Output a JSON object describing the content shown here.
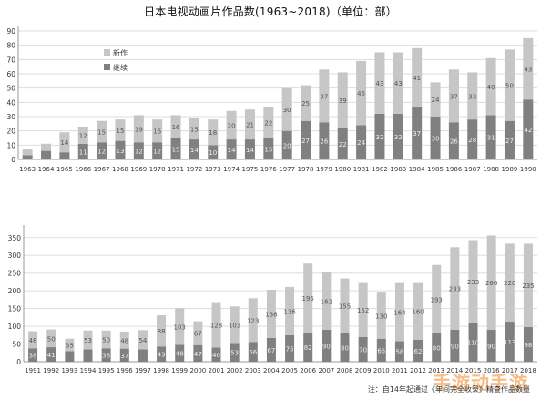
{
  "title": "日本电视动画片作品数(1963~2018)（单位：部）",
  "footnote": "注：自14年起通过《年间完全收录》精查作品数量",
  "watermark": "手游动手游",
  "colors": {
    "new": "#c6c6c6",
    "continued": "#808080",
    "axis": "#999999",
    "grid": "#dddddd",
    "text": "#333333",
    "label_dark": "#555555",
    "label_light": "#eeeeee"
  },
  "chart_data": [
    {
      "type": "bar",
      "stacked": true,
      "categories": [
        "1963",
        "1964",
        "1965",
        "1966",
        "1967",
        "1968",
        "1969",
        "1970",
        "1971",
        "1972",
        "1973",
        "1974",
        "1975",
        "1976",
        "1977",
        "1978",
        "1979",
        "1980",
        "1981",
        "1982",
        "1983",
        "1984",
        "1985",
        "1986",
        "1987",
        "1988",
        "1989",
        "1990"
      ],
      "series": [
        {
          "name": "继续",
          "color_key": "continued",
          "values": [
            3,
            6,
            5,
            11,
            12,
            13,
            12,
            12,
            15,
            14,
            10,
            14,
            14,
            15,
            20,
            27,
            26,
            22,
            24,
            32,
            32,
            37,
            30,
            26,
            28,
            31,
            27,
            42
          ]
        },
        {
          "name": "新作",
          "color_key": "new",
          "values": [
            4,
            5,
            14,
            12,
            15,
            15,
            19,
            16,
            16,
            15,
            18,
            20,
            21,
            22,
            30,
            25,
            37,
            39,
            45,
            43,
            43,
            41,
            24,
            37,
            33,
            40,
            50,
            43
          ]
        }
      ],
      "new_value_labels": [
        "",
        "",
        "14",
        "12",
        "15",
        "15",
        "19",
        "16",
        "16",
        "15",
        "18",
        "20",
        "21",
        "22",
        "30",
        "25",
        "37",
        "39",
        "45",
        "43",
        "43",
        "41",
        "24",
        "37",
        "33",
        "40",
        "50",
        "43"
      ],
      "ylim": [
        0,
        90
      ],
      "yticks": [
        0,
        10,
        20,
        30,
        40,
        50,
        60,
        70,
        80,
        90
      ],
      "grid": true,
      "legend": "upper-left"
    },
    {
      "type": "bar",
      "stacked": true,
      "categories": [
        "1991",
        "1992",
        "1993",
        "1994",
        "1995",
        "1996",
        "1997",
        "1998",
        "1999",
        "2000",
        "2001",
        "2002",
        "2003",
        "2004",
        "2005",
        "2006",
        "2007",
        "2008",
        "2009",
        "2010",
        "2011",
        "2012",
        "2013",
        "2014",
        "2015",
        "2016",
        "2017",
        "2018"
      ],
      "series": [
        {
          "name": "继续",
          "color_key": "continued",
          "values": [
            38,
            41,
            30,
            35,
            38,
            37,
            35,
            43,
            48,
            47,
            40,
            53,
            56,
            67,
            75,
            82,
            90,
            80,
            70,
            65,
            58,
            62,
            80,
            90,
            110,
            90,
            113,
            98
          ]
        },
        {
          "name": "新作",
          "color_key": "new",
          "values": [
            48,
            50,
            35,
            53,
            50,
            48,
            54,
            88,
            103,
            67,
            128,
            103,
            123,
            136,
            136,
            195,
            162,
            155,
            152,
            130,
            164,
            160,
            193,
            233,
            233,
            266,
            220,
            235
          ]
        }
      ],
      "new_value_labels": [
        "48",
        "50",
        "35",
        "53",
        "50",
        "48",
        "54",
        "88",
        "103",
        "67",
        "128",
        "103",
        "123",
        "136",
        "136",
        "195",
        "162",
        "155",
        "152",
        "130",
        "164",
        "160",
        "193",
        "233",
        "233",
        "266",
        "220",
        "235"
      ],
      "ylim": [
        0,
        370
      ],
      "yticks": [
        0,
        50,
        100,
        150,
        200,
        250,
        300,
        350
      ],
      "grid": true,
      "legend": "none"
    }
  ]
}
